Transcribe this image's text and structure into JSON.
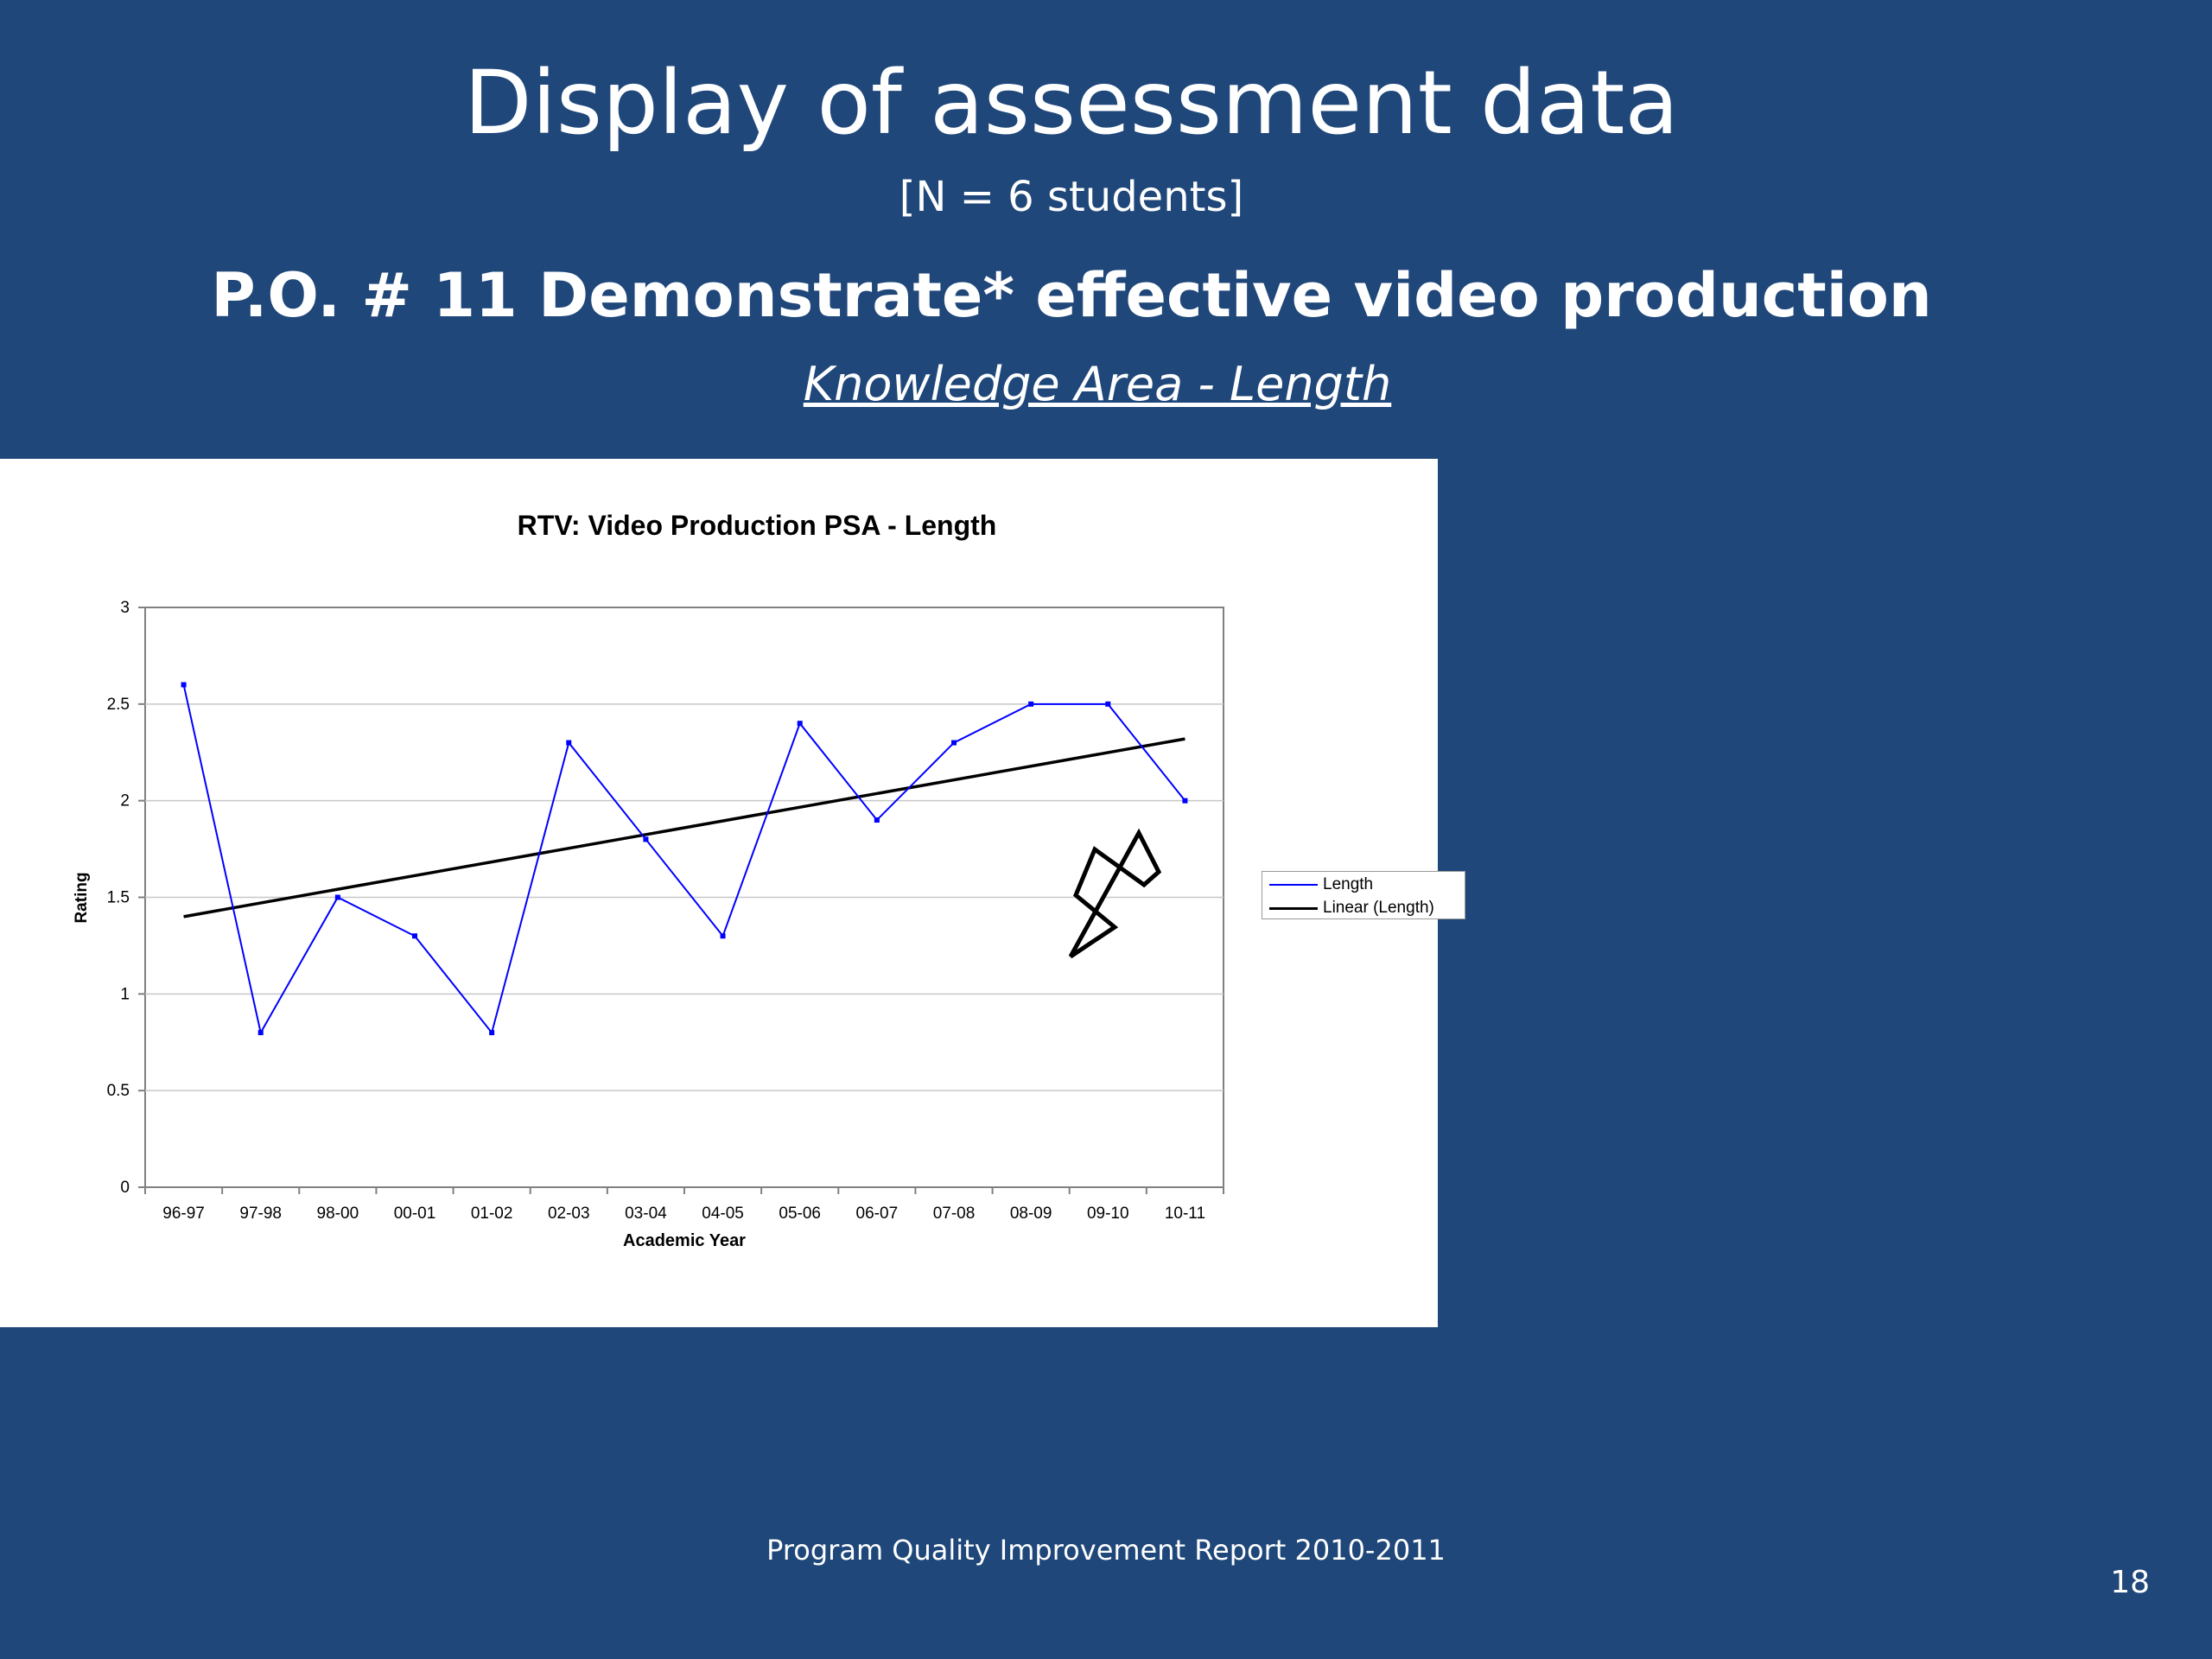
{
  "slide": {
    "title": "Display of assessment data",
    "subtitle": "[N = 6 students]",
    "heading": "P.O. # 11 Demonstrate* effective video production",
    "knowledge_area": "Knowledge Area - Length",
    "footer": "Program Quality Improvement Report 2010-2011",
    "page_number": "18"
  },
  "colors": {
    "background": "#1f477a",
    "series_line": "#0000ff",
    "trend_line": "#000000"
  },
  "chart_data": {
    "type": "line",
    "title": "RTV:  Video Production PSA - Length",
    "xlabel": "Academic Year",
    "ylabel": "Rating",
    "categories": [
      "96-97",
      "97-98",
      "98-00",
      "00-01",
      "01-02",
      "02-03",
      "03-04",
      "04-05",
      "05-06",
      "06-07",
      "07-08",
      "08-09",
      "09-10",
      "10-11"
    ],
    "series": [
      {
        "name": "Length",
        "color": "#0000ff",
        "values": [
          2.6,
          0.8,
          1.5,
          1.3,
          0.8,
          2.3,
          1.8,
          1.3,
          2.4,
          1.9,
          2.3,
          2.5,
          2.5,
          2.0
        ]
      }
    ],
    "trendline": {
      "name": "Linear (Length)",
      "color": "#000000",
      "type": "linear",
      "start": 1.4,
      "end": 2.32
    },
    "ylim": [
      0,
      3
    ],
    "yticks": [
      "0",
      "0.5",
      "1",
      "1.5",
      "2",
      "2.5",
      "3"
    ],
    "grid": true,
    "legend_position": "right",
    "annotation": "arrow-pointing-up-right"
  }
}
